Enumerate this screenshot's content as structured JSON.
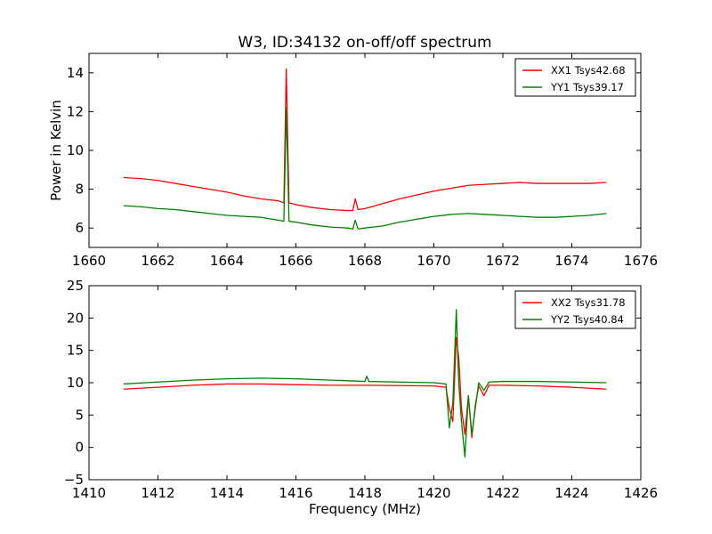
{
  "title": "W3, ID:34132 on-off/off spectrum",
  "colors": {
    "red": "#ff0000",
    "green": "#008000"
  },
  "chart_data": [
    {
      "type": "line",
      "title": "W3, ID:34132 on-off/off spectrum",
      "xlabel": "",
      "ylabel": "Power in Kelvin",
      "xlim": [
        1660,
        1676
      ],
      "ylim": [
        5,
        15
      ],
      "xticks": [
        "1660",
        "1662",
        "1664",
        "1666",
        "1668",
        "1670",
        "1672",
        "1674",
        "1676"
      ],
      "yticks": [
        "6",
        "8",
        "10",
        "12",
        "14"
      ],
      "legend_position": "top-right",
      "grid": false,
      "series": [
        {
          "name": "XX1 Tsys42.68",
          "color": "#ff0000",
          "x": [
            1661.0,
            1661.5,
            1662.0,
            1662.5,
            1663.0,
            1663.5,
            1664.0,
            1664.5,
            1665.0,
            1665.5,
            1665.65,
            1665.72,
            1665.8,
            1666.0,
            1666.5,
            1667.0,
            1667.5,
            1667.65,
            1667.72,
            1667.8,
            1668.0,
            1668.5,
            1669.0,
            1669.5,
            1670.0,
            1670.5,
            1671.0,
            1671.5,
            1672.0,
            1672.5,
            1673.0,
            1673.5,
            1674.0,
            1674.5,
            1675.0
          ],
          "y": [
            8.6,
            8.55,
            8.45,
            8.3,
            8.15,
            8.0,
            7.85,
            7.65,
            7.5,
            7.4,
            7.3,
            14.2,
            7.3,
            7.2,
            7.05,
            6.95,
            6.9,
            6.9,
            7.5,
            6.95,
            7.0,
            7.25,
            7.5,
            7.7,
            7.9,
            8.05,
            8.2,
            8.25,
            8.3,
            8.35,
            8.3,
            8.3,
            8.3,
            8.3,
            8.35
          ]
        },
        {
          "name": "YY1 Tsys39.17",
          "color": "#008000",
          "x": [
            1661.0,
            1661.5,
            1662.0,
            1662.5,
            1663.0,
            1663.5,
            1664.0,
            1664.5,
            1665.0,
            1665.5,
            1665.65,
            1665.72,
            1665.8,
            1666.0,
            1666.5,
            1667.0,
            1667.5,
            1667.65,
            1667.72,
            1667.8,
            1668.0,
            1668.5,
            1669.0,
            1669.5,
            1670.0,
            1670.5,
            1671.0,
            1671.5,
            1672.0,
            1672.5,
            1673.0,
            1673.5,
            1674.0,
            1674.5,
            1675.0
          ],
          "y": [
            7.15,
            7.1,
            7.0,
            6.95,
            6.85,
            6.75,
            6.65,
            6.6,
            6.55,
            6.4,
            6.35,
            12.2,
            6.35,
            6.3,
            6.15,
            6.05,
            6.0,
            5.95,
            6.4,
            5.95,
            6.0,
            6.1,
            6.3,
            6.45,
            6.6,
            6.7,
            6.75,
            6.7,
            6.65,
            6.6,
            6.55,
            6.55,
            6.6,
            6.65,
            6.75
          ]
        }
      ]
    },
    {
      "type": "line",
      "title": "",
      "xlabel": "Frequency (MHz)",
      "ylabel": "",
      "xlim": [
        1410,
        1426
      ],
      "ylim": [
        -5,
        25
      ],
      "xticks": [
        "1410",
        "1412",
        "1414",
        "1416",
        "1418",
        "1420",
        "1422",
        "1424",
        "1426"
      ],
      "yticks": [
        "−5",
        "0",
        "5",
        "10",
        "15",
        "20",
        "25"
      ],
      "legend_position": "top-right",
      "grid": false,
      "series": [
        {
          "name": "XX2 Tsys31.78",
          "color": "#ff0000",
          "x": [
            1411.0,
            1412.0,
            1413.0,
            1414.0,
            1415.0,
            1416.0,
            1417.0,
            1418.0,
            1419.0,
            1420.0,
            1420.35,
            1420.45,
            1420.55,
            1420.65,
            1420.72,
            1420.8,
            1420.9,
            1421.0,
            1421.1,
            1421.2,
            1421.3,
            1421.45,
            1421.6,
            1422.0,
            1423.0,
            1424.0,
            1425.0
          ],
          "y": [
            9.0,
            9.3,
            9.6,
            9.8,
            9.8,
            9.7,
            9.6,
            9.6,
            9.55,
            9.5,
            9.3,
            6.0,
            4.0,
            17.0,
            14.0,
            6.0,
            2.0,
            8.0,
            1.5,
            6.5,
            9.5,
            8.0,
            9.6,
            9.6,
            9.5,
            9.3,
            9.0
          ]
        },
        {
          "name": "YY2 Tsys40.84",
          "color": "#008000",
          "x": [
            1411.0,
            1412.0,
            1413.0,
            1414.0,
            1415.0,
            1416.0,
            1417.0,
            1418.0,
            1418.05,
            1418.12,
            1419.0,
            1420.0,
            1420.35,
            1420.45,
            1420.55,
            1420.65,
            1420.72,
            1420.8,
            1420.9,
            1421.0,
            1421.1,
            1421.2,
            1421.3,
            1421.45,
            1421.6,
            1422.0,
            1423.0,
            1424.0,
            1425.0
          ],
          "y": [
            9.8,
            10.1,
            10.4,
            10.6,
            10.7,
            10.6,
            10.4,
            10.2,
            11.0,
            10.2,
            10.1,
            10.0,
            9.8,
            3.0,
            7.0,
            21.3,
            10.0,
            4.0,
            -1.5,
            8.0,
            2.0,
            6.0,
            10.0,
            8.8,
            10.1,
            10.2,
            10.2,
            10.1,
            10.0
          ]
        }
      ]
    }
  ]
}
